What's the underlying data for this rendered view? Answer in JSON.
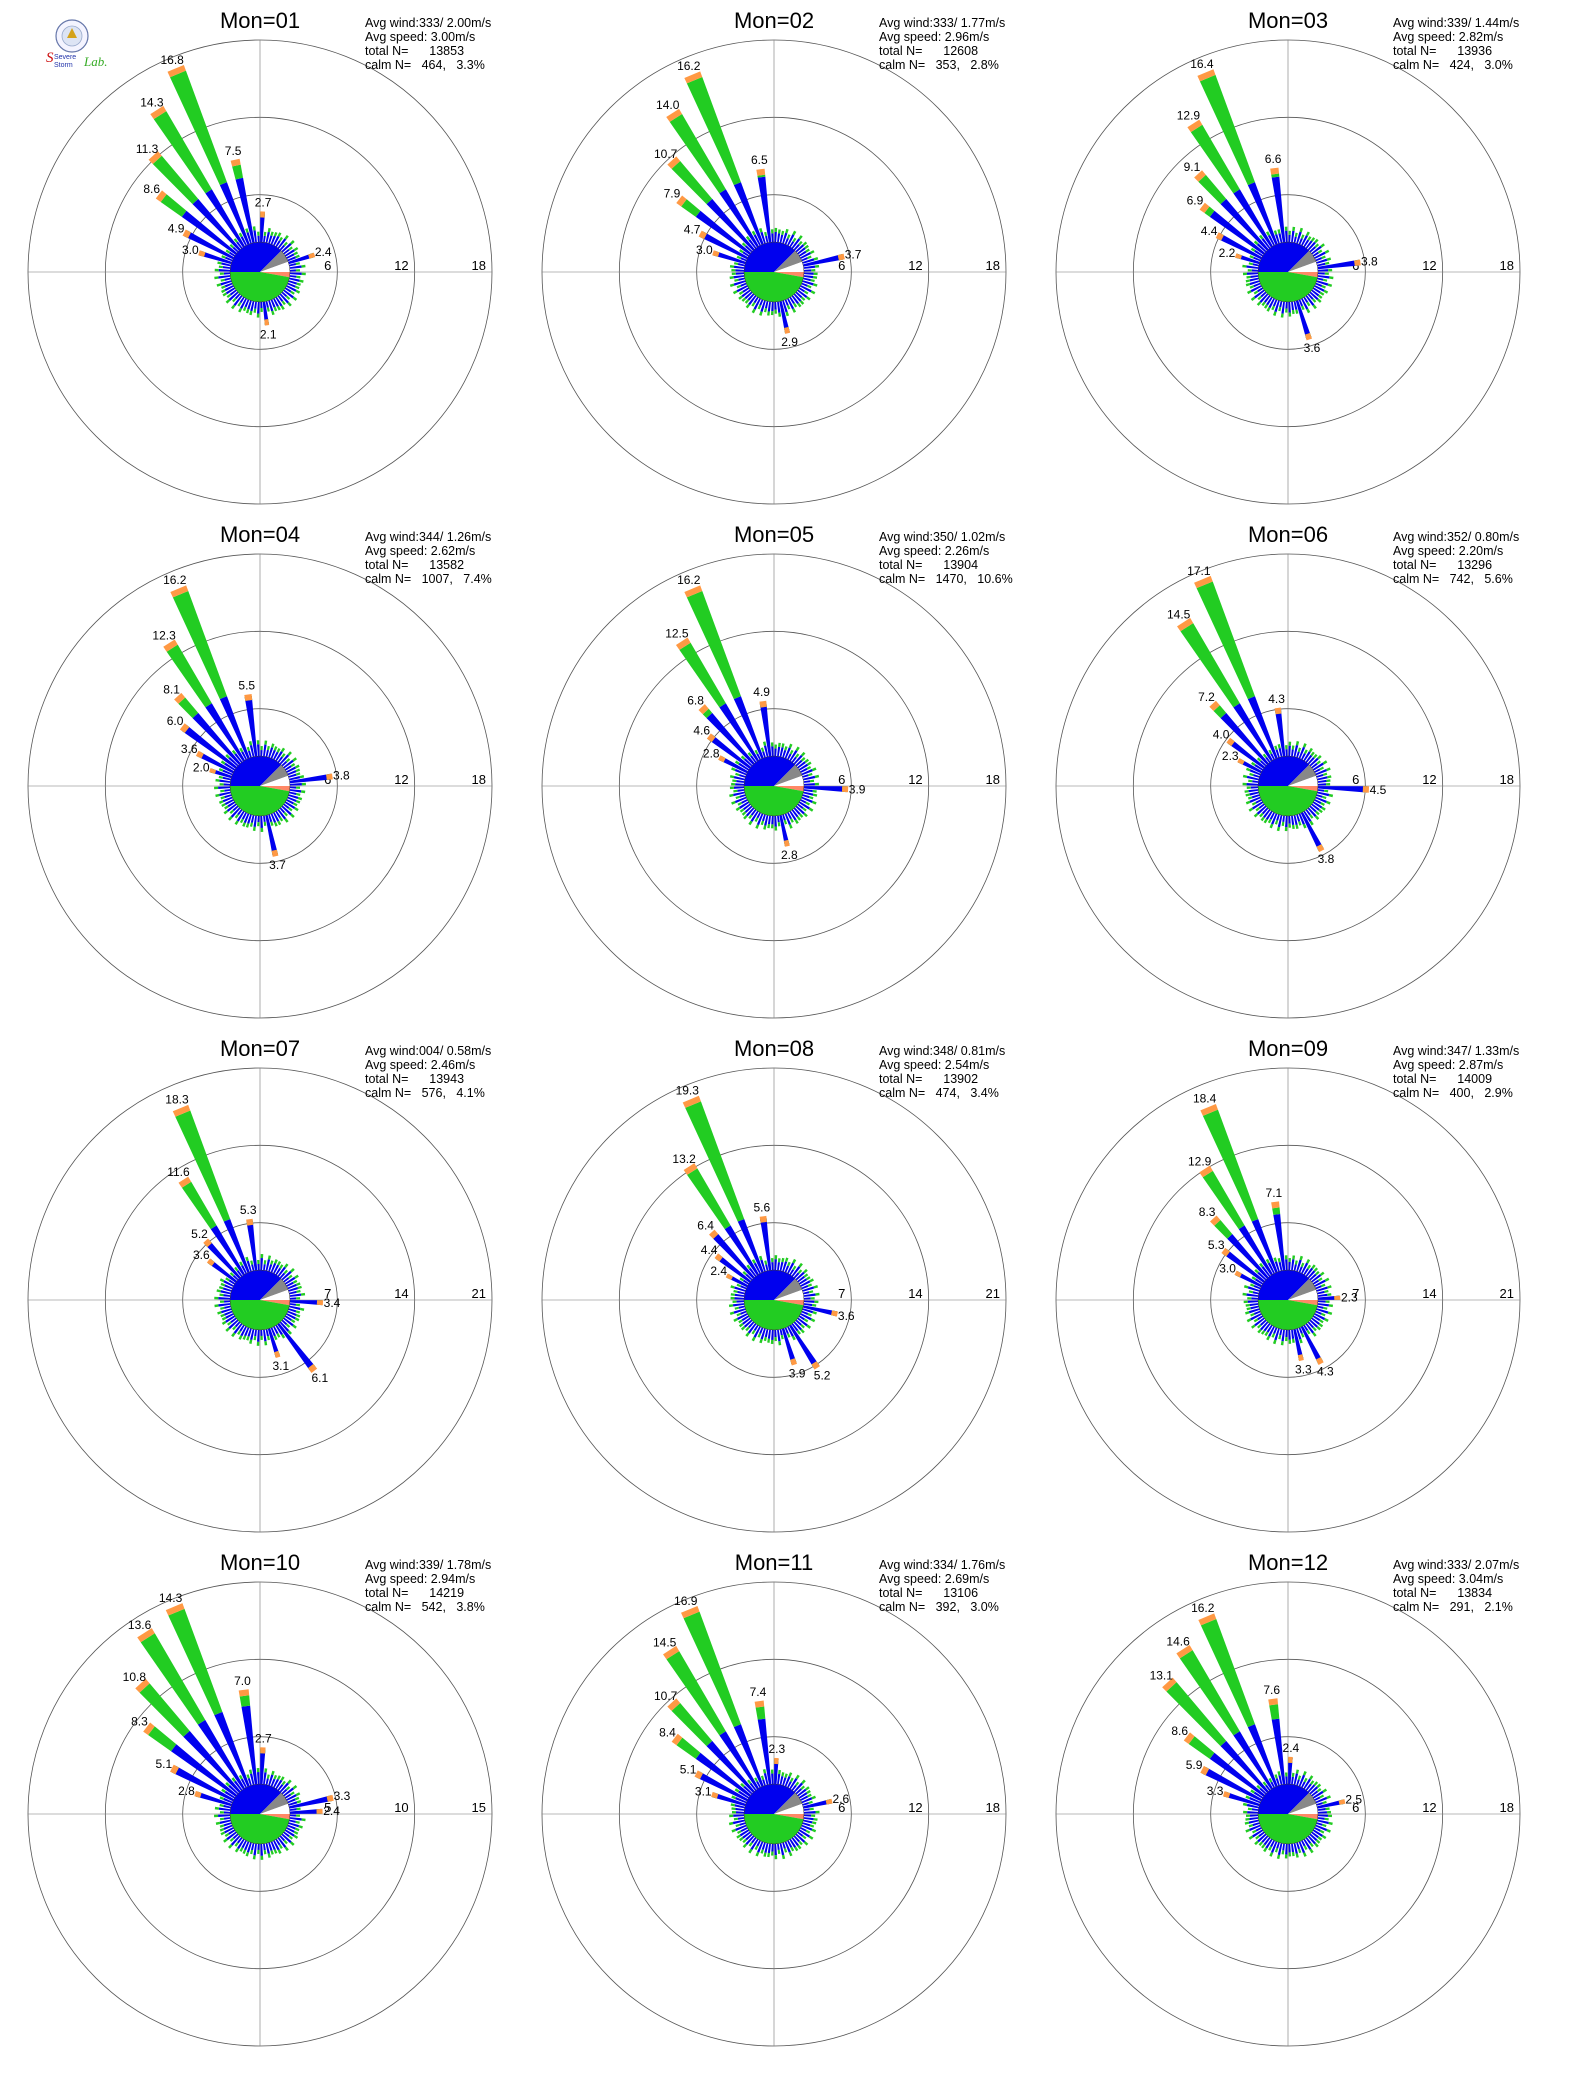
{
  "logo": {
    "line1": "Severe",
    "line2": "Storm",
    "line3": "Lab."
  },
  "labels": {
    "avg_wind": "Avg wind:",
    "avg_speed": "Avg speed:",
    "total_n": "total N=",
    "calm_n": "calm N="
  },
  "colors": {
    "green": "#22cc22",
    "blue": "#0000ee",
    "orange": "#ff9944",
    "red": "#ee0000",
    "gray": "#888888",
    "salmon": "#ff8866"
  },
  "chart_data": [
    {
      "type": "polar-bar",
      "title": "Mon=01",
      "avg_wind": "333/ 2.00m/s",
      "avg_speed": "3.00m/s",
      "total_n": "13853",
      "calm_n": "464,",
      "calm_pct": "3.3%",
      "rings": [
        "6",
        "12",
        "18"
      ],
      "rmax": 18,
      "peaks": [
        {
          "dir": 337.5,
          "value": 16.8,
          "label": "16.8"
        },
        {
          "dir": 327.5,
          "value": 14.3,
          "label": "14.3"
        },
        {
          "dir": 317.5,
          "value": 11.3,
          "label": "11.3"
        },
        {
          "dir": 307.5,
          "value": 8.6,
          "label": "8.6"
        },
        {
          "dir": 297.5,
          "value": 4.9,
          "label": "4.9"
        },
        {
          "dir": 287.5,
          "value": 3.0,
          "label": "3.0"
        },
        {
          "dir": 347.5,
          "value": 7.5,
          "label": "7.5"
        },
        {
          "dir": 2.5,
          "value": 2.7,
          "label": "2.7"
        },
        {
          "dir": 72.5,
          "value": 2.4,
          "label": "2.4"
        },
        {
          "dir": 172.5,
          "value": 2.1,
          "label": "2.1"
        }
      ]
    },
    {
      "type": "polar-bar",
      "title": "Mon=02",
      "avg_wind": "333/ 1.77m/s",
      "avg_speed": "2.96m/s",
      "total_n": "12608",
      "calm_n": "353,",
      "calm_pct": "2.8%",
      "rings": [
        "6",
        "12",
        "18"
      ],
      "rmax": 18,
      "peaks": [
        {
          "dir": 337.5,
          "value": 16.2,
          "label": "16.2"
        },
        {
          "dir": 327.5,
          "value": 14.0,
          "label": "14.0"
        },
        {
          "dir": 317.5,
          "value": 10.7,
          "label": "10.7"
        },
        {
          "dir": 307.5,
          "value": 7.9,
          "label": "7.9"
        },
        {
          "dir": 297.5,
          "value": 4.7,
          "label": "4.7"
        },
        {
          "dir": 287.5,
          "value": 3.0,
          "label": "3.0"
        },
        {
          "dir": 352.5,
          "value": 6.5,
          "label": "6.5"
        },
        {
          "dir": 77.5,
          "value": 3.7,
          "label": "3.7"
        },
        {
          "dir": 167.5,
          "value": 2.9,
          "label": "2.9"
        }
      ]
    },
    {
      "type": "polar-bar",
      "title": "Mon=03",
      "avg_wind": "339/ 1.44m/s",
      "avg_speed": "2.82m/s",
      "total_n": "13936",
      "calm_n": "424,",
      "calm_pct": "3.0%",
      "rings": [
        "6",
        "12",
        "18"
      ],
      "rmax": 18,
      "peaks": [
        {
          "dir": 337.5,
          "value": 16.4,
          "label": "16.4"
        },
        {
          "dir": 327.5,
          "value": 12.9,
          "label": "12.9"
        },
        {
          "dir": 317.5,
          "value": 9.1,
          "label": "9.1"
        },
        {
          "dir": 307.5,
          "value": 6.9,
          "label": "6.9"
        },
        {
          "dir": 297.5,
          "value": 4.4,
          "label": "4.4"
        },
        {
          "dir": 287.5,
          "value": 2.2,
          "label": "2.2"
        },
        {
          "dir": 352.5,
          "value": 6.6,
          "label": "6.6"
        },
        {
          "dir": 82.5,
          "value": 3.8,
          "label": "3.8"
        },
        {
          "dir": 162.5,
          "value": 3.6,
          "label": "3.6"
        }
      ]
    },
    {
      "type": "polar-bar",
      "title": "Mon=04",
      "avg_wind": "344/ 1.26m/s",
      "avg_speed": "2.62m/s",
      "total_n": "13582",
      "calm_n": "1007,",
      "calm_pct": "7.4%",
      "rings": [
        "6",
        "12",
        "18"
      ],
      "rmax": 18,
      "peaks": [
        {
          "dir": 337.5,
          "value": 16.2,
          "label": "16.2"
        },
        {
          "dir": 327.5,
          "value": 12.3,
          "label": "12.3"
        },
        {
          "dir": 317.5,
          "value": 8.1,
          "label": "8.1"
        },
        {
          "dir": 307.5,
          "value": 6.0,
          "label": "6.0"
        },
        {
          "dir": 297.5,
          "value": 3.6,
          "label": "3.6"
        },
        {
          "dir": 287.5,
          "value": 2.0,
          "label": "2.0"
        },
        {
          "dir": 352.5,
          "value": 5.5,
          "label": "5.5"
        },
        {
          "dir": 82.5,
          "value": 3.8,
          "label": "3.8"
        },
        {
          "dir": 167.5,
          "value": 3.7,
          "label": "3.7"
        }
      ]
    },
    {
      "type": "polar-bar",
      "title": "Mon=05",
      "avg_wind": "350/ 1.02m/s",
      "avg_speed": "2.26m/s",
      "total_n": "13904",
      "calm_n": "1470,",
      "calm_pct": "10.6%",
      "rings": [
        "6",
        "12",
        "18"
      ],
      "rmax": 18,
      "peaks": [
        {
          "dir": 337.5,
          "value": 16.2,
          "label": "16.2"
        },
        {
          "dir": 327.5,
          "value": 12.5,
          "label": "12.5"
        },
        {
          "dir": 317.5,
          "value": 6.8,
          "label": "6.8"
        },
        {
          "dir": 307.5,
          "value": 4.6,
          "label": "4.6"
        },
        {
          "dir": 297.5,
          "value": 2.8,
          "label": "2.8"
        },
        {
          "dir": 352.5,
          "value": 4.9,
          "label": "4.9"
        },
        {
          "dir": 92.5,
          "value": 3.9,
          "label": "3.9"
        },
        {
          "dir": 167.5,
          "value": 2.8,
          "label": "2.8"
        }
      ]
    },
    {
      "type": "polar-bar",
      "title": "Mon=06",
      "avg_wind": "352/ 0.80m/s",
      "avg_speed": "2.20m/s",
      "total_n": "13296",
      "calm_n": "742,",
      "calm_pct": "5.6%",
      "rings": [
        "6",
        "12",
        "18"
      ],
      "rmax": 18,
      "peaks": [
        {
          "dir": 337.5,
          "value": 17.1,
          "label": "17.1"
        },
        {
          "dir": 327.5,
          "value": 14.5,
          "label": "14.5"
        },
        {
          "dir": 317.5,
          "value": 7.2,
          "label": "7.2"
        },
        {
          "dir": 307.5,
          "value": 4.0,
          "label": "4.0"
        },
        {
          "dir": 297.5,
          "value": 2.3,
          "label": "2.3"
        },
        {
          "dir": 352.5,
          "value": 4.3,
          "label": "4.3"
        },
        {
          "dir": 92.5,
          "value": 4.5,
          "label": "4.5"
        },
        {
          "dir": 152.5,
          "value": 3.8,
          "label": "3.8"
        }
      ]
    },
    {
      "type": "polar-bar",
      "title": "Mon=07",
      "avg_wind": "004/ 0.58m/s",
      "avg_speed": "2.46m/s",
      "total_n": "13943",
      "calm_n": "576,",
      "calm_pct": "4.1%",
      "rings": [
        "7",
        "14",
        "21"
      ],
      "rmax": 21,
      "peaks": [
        {
          "dir": 337.5,
          "value": 18.3,
          "label": "18.3"
        },
        {
          "dir": 327.5,
          "value": 11.6,
          "label": "11.6"
        },
        {
          "dir": 317.5,
          "value": 5.2,
          "label": "5.2"
        },
        {
          "dir": 307.5,
          "value": 3.6,
          "label": "3.6"
        },
        {
          "dir": 352.5,
          "value": 5.3,
          "label": "5.3"
        },
        {
          "dir": 92.5,
          "value": 3.4,
          "label": "3.4"
        },
        {
          "dir": 142.5,
          "value": 6.1,
          "label": "6.1"
        },
        {
          "dir": 162.5,
          "value": 3.1,
          "label": "3.1"
        }
      ]
    },
    {
      "type": "polar-bar",
      "title": "Mon=08",
      "avg_wind": "348/ 0.81m/s",
      "avg_speed": "2.54m/s",
      "total_n": "13902",
      "calm_n": "474,",
      "calm_pct": "3.4%",
      "rings": [
        "7",
        "14",
        "21"
      ],
      "rmax": 21,
      "peaks": [
        {
          "dir": 337.5,
          "value": 19.3,
          "label": "19.3"
        },
        {
          "dir": 327.5,
          "value": 13.2,
          "label": "13.2"
        },
        {
          "dir": 317.5,
          "value": 6.4,
          "label": "6.4"
        },
        {
          "dir": 307.5,
          "value": 4.4,
          "label": "4.4"
        },
        {
          "dir": 297.5,
          "value": 2.4,
          "label": "2.4"
        },
        {
          "dir": 352.5,
          "value": 5.6,
          "label": "5.6"
        },
        {
          "dir": 102.5,
          "value": 3.6,
          "label": "3.6"
        },
        {
          "dir": 147.5,
          "value": 5.2,
          "label": "5.2"
        },
        {
          "dir": 162.5,
          "value": 3.9,
          "label": "3.9"
        }
      ]
    },
    {
      "type": "polar-bar",
      "title": "Mon=09",
      "avg_wind": "347/ 1.33m/s",
      "avg_speed": "2.87m/s",
      "total_n": "14009",
      "calm_n": "400,",
      "calm_pct": "2.9%",
      "rings": [
        "7",
        "14",
        "21"
      ],
      "rmax": 21,
      "peaks": [
        {
          "dir": 337.5,
          "value": 18.4,
          "label": "18.4"
        },
        {
          "dir": 327.5,
          "value": 12.9,
          "label": "12.9"
        },
        {
          "dir": 317.5,
          "value": 8.3,
          "label": "8.3"
        },
        {
          "dir": 307.5,
          "value": 5.3,
          "label": "5.3"
        },
        {
          "dir": 297.5,
          "value": 3.0,
          "label": "3.0"
        },
        {
          "dir": 352.5,
          "value": 7.1,
          "label": "7.1"
        },
        {
          "dir": 87.5,
          "value": 2.3,
          "label": "2.3"
        },
        {
          "dir": 152.5,
          "value": 4.3,
          "label": "4.3"
        },
        {
          "dir": 167.5,
          "value": 3.3,
          "label": "3.3"
        }
      ]
    },
    {
      "type": "polar-bar",
      "title": "Mon=10",
      "avg_wind": "339/ 1.78m/s",
      "avg_speed": "2.94m/s",
      "total_n": "14219",
      "calm_n": "542,",
      "calm_pct": "3.8%",
      "rings": [
        "5",
        "10",
        "15"
      ],
      "rmax": 15,
      "peaks": [
        {
          "dir": 337.5,
          "value": 14.3,
          "label": "14.3"
        },
        {
          "dir": 327.5,
          "value": 13.6,
          "label": "13.6"
        },
        {
          "dir": 317.5,
          "value": 10.8,
          "label": "10.8"
        },
        {
          "dir": 307.5,
          "value": 8.3,
          "label": "8.3"
        },
        {
          "dir": 297.5,
          "value": 5.1,
          "label": "5.1"
        },
        {
          "dir": 287.5,
          "value": 2.8,
          "label": "2.8"
        },
        {
          "dir": 352.5,
          "value": 7.0,
          "label": "7.0"
        },
        {
          "dir": 2.5,
          "value": 2.7,
          "label": "2.7"
        },
        {
          "dir": 77.5,
          "value": 3.3,
          "label": "3.3"
        },
        {
          "dir": 87.5,
          "value": 2.4,
          "label": "2.4"
        }
      ]
    },
    {
      "type": "polar-bar",
      "title": "Mon=11",
      "avg_wind": "334/ 1.76m/s",
      "avg_speed": "2.69m/s",
      "total_n": "13106",
      "calm_n": "392,",
      "calm_pct": "3.0%",
      "rings": [
        "6",
        "12",
        "18"
      ],
      "rmax": 18,
      "peaks": [
        {
          "dir": 337.5,
          "value": 16.9,
          "label": "16.9"
        },
        {
          "dir": 327.5,
          "value": 14.5,
          "label": "14.5"
        },
        {
          "dir": 317.5,
          "value": 10.7,
          "label": "10.7"
        },
        {
          "dir": 307.5,
          "value": 8.4,
          "label": "8.4"
        },
        {
          "dir": 297.5,
          "value": 5.1,
          "label": "5.1"
        },
        {
          "dir": 287.5,
          "value": 3.1,
          "label": "3.1"
        },
        {
          "dir": 352.5,
          "value": 7.4,
          "label": "7.4"
        },
        {
          "dir": 2.5,
          "value": 2.3,
          "label": "2.3"
        },
        {
          "dir": 77.5,
          "value": 2.6,
          "label": "2.6"
        }
      ]
    },
    {
      "type": "polar-bar",
      "title": "Mon=12",
      "avg_wind": "333/ 2.07m/s",
      "avg_speed": "3.04m/s",
      "total_n": "13834",
      "calm_n": "291,",
      "calm_pct": "2.1%",
      "rings": [
        "6",
        "12",
        "18"
      ],
      "rmax": 18,
      "peaks": [
        {
          "dir": 337.5,
          "value": 16.2,
          "label": "16.2"
        },
        {
          "dir": 327.5,
          "value": 14.6,
          "label": "14.6"
        },
        {
          "dir": 317.5,
          "value": 13.1,
          "label": "13.1"
        },
        {
          "dir": 307.5,
          "value": 8.6,
          "label": "8.6"
        },
        {
          "dir": 297.5,
          "value": 5.9,
          "label": "5.9"
        },
        {
          "dir": 287.5,
          "value": 3.3,
          "label": "3.3"
        },
        {
          "dir": 352.5,
          "value": 7.6,
          "label": "7.6"
        },
        {
          "dir": 2.5,
          "value": 2.4,
          "label": "2.4"
        },
        {
          "dir": 77.5,
          "value": 2.5,
          "label": "2.5"
        }
      ]
    }
  ]
}
